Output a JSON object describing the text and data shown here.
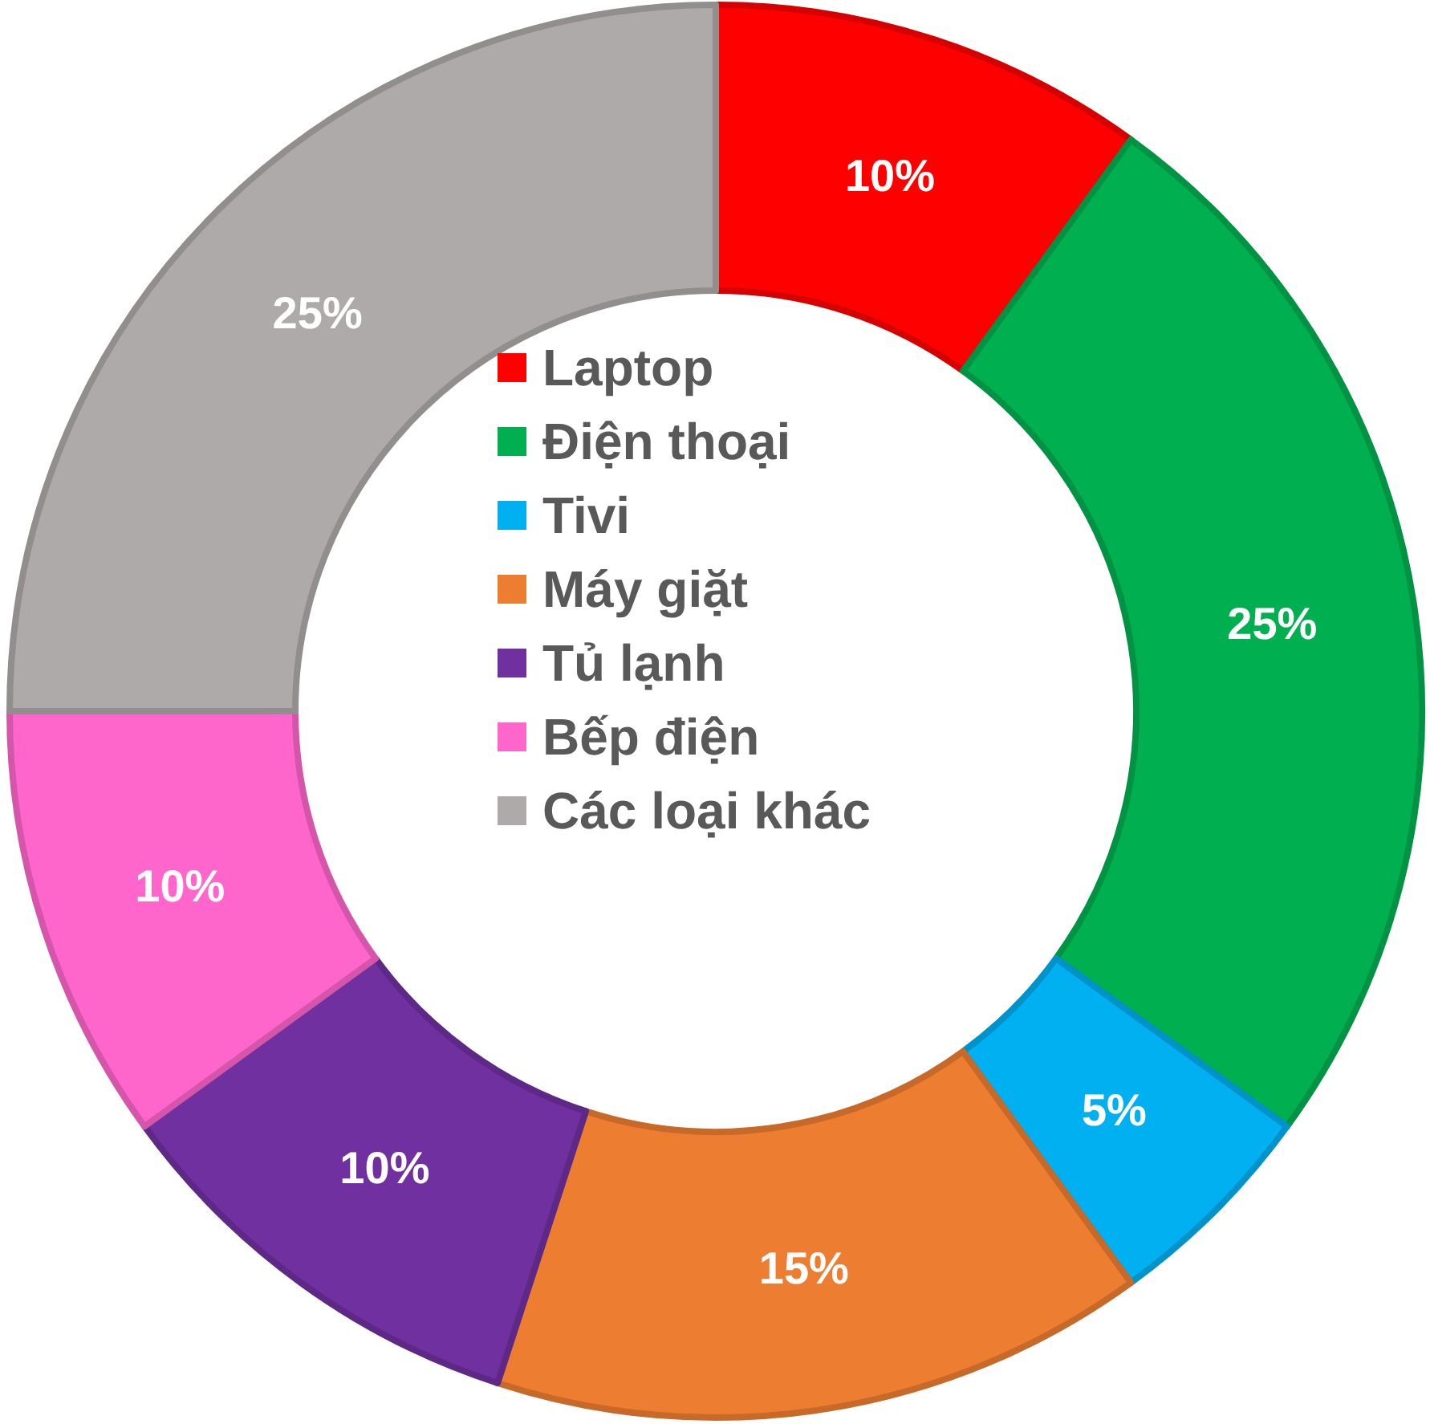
{
  "chart_data": {
    "type": "donut",
    "categories": [
      "Laptop",
      "Điện thoại",
      "Tivi",
      "Máy giặt",
      "Tủ lạnh",
      "Bếp điện",
      "Các loại khác"
    ],
    "values": [
      10,
      25,
      5,
      15,
      10,
      10,
      25
    ],
    "value_labels": [
      "10%",
      "25%",
      "5%",
      "15%",
      "10%",
      "10%",
      "25%"
    ],
    "colors": [
      "#ff0000",
      "#00b050",
      "#00b0f0",
      "#ed7d31",
      "#7030a0",
      "#ff66cc",
      "#aeaaaa"
    ],
    "legend": "center"
  }
}
